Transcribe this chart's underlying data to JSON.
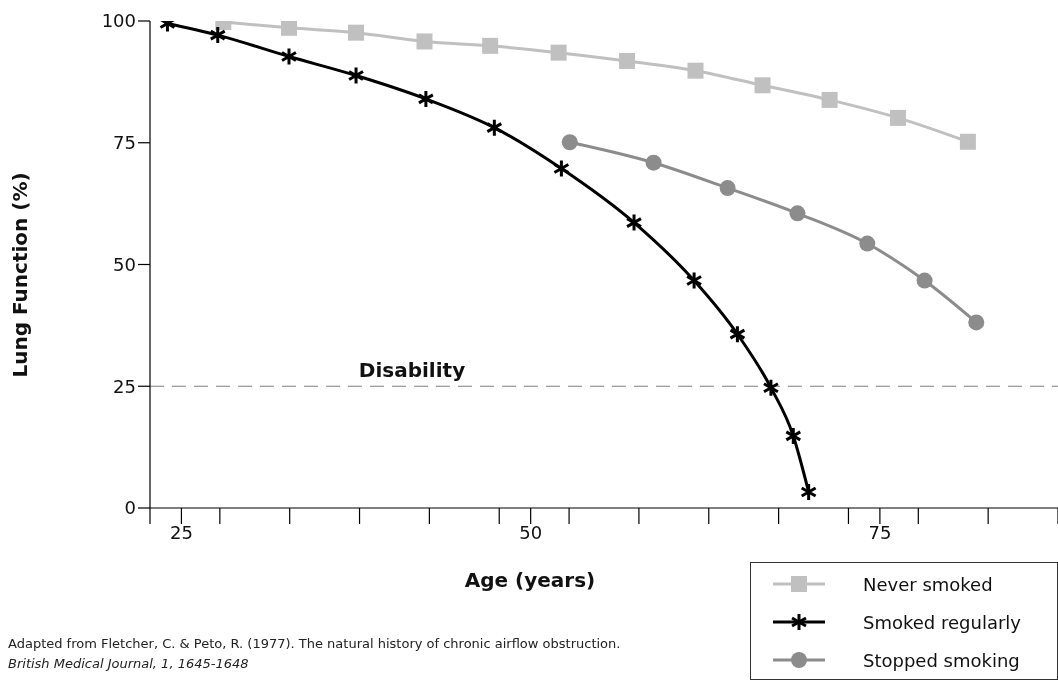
{
  "chart_data": {
    "type": "line",
    "xlabel": "Age (years)",
    "ylabel": "Lung Function (%)",
    "xlim": [
      22.75,
      87.75
    ],
    "ylim": [
      0,
      100
    ],
    "xticks": [
      {
        "value": 22.75,
        "label": null
      },
      25,
      {
        "value": 27.75,
        "label": null
      },
      {
        "value": 32.75,
        "label": null
      },
      {
        "value": 37.75,
        "label": null
      },
      {
        "value": 42.75,
        "label": null
      },
      {
        "value": 47.75,
        "label": null
      },
      50,
      {
        "value": 52.75,
        "label": null
      },
      {
        "value": 57.75,
        "label": null
      },
      {
        "value": 62.75,
        "label": null
      },
      {
        "value": 67.75,
        "label": null
      },
      {
        "value": 72.75,
        "label": null
      },
      75,
      {
        "value": 77.75,
        "label": null
      },
      {
        "value": 82.75,
        "label": null
      },
      {
        "value": 87.75,
        "label": null
      }
    ],
    "yticks": [
      0,
      25,
      50,
      75,
      100
    ],
    "series": [
      {
        "name": "Never smoked",
        "color": "#c0c0c0",
        "marker": "square",
        "x": [
          28,
          32.7,
          37.5,
          42.4,
          47.1,
          52,
          56.9,
          61.8,
          66.6,
          71.4,
          76.3,
          81.3
        ],
        "values": [
          99.8,
          98.6,
          97.6,
          95.8,
          94.9,
          93.5,
          91.8,
          89.8,
          86.8,
          83.8,
          80.1,
          75.2
        ]
      },
      {
        "name": "Smoked regularly",
        "color": "#000000",
        "marker": "cross",
        "x": [
          24,
          27.6,
          32.7,
          37.5,
          42.5,
          47.4,
          52.2,
          57.4,
          61.7,
          64.8,
          67.2,
          68.8,
          69.9
        ],
        "values": [
          99.5,
          97.1,
          92.7,
          88.8,
          84,
          78.1,
          69.7,
          58.6,
          46.7,
          35.7,
          24.7,
          14.8,
          3.3
        ]
      },
      {
        "name": "Stopped smoking",
        "color": "#8c8c8c",
        "marker": "circle",
        "x": [
          52.8,
          58.8,
          64.1,
          69.1,
          74.1,
          78.2,
          81.9
        ],
        "values": [
          75.1,
          70.9,
          65.7,
          60.5,
          54.3,
          46.7,
          38.1
        ]
      }
    ],
    "ref_lines": [
      {
        "axis": "y",
        "value": 25,
        "label": "Disability",
        "color": "#808080",
        "line_style": "dashed"
      }
    ],
    "grid": false,
    "legend": "bottom right",
    "annotations": [
      "Adapted from Fletcher, C. & Peto, R. (1977). The natural history of chronic airflow obstruction.",
      "British Medical Journal, 1, 1645-1648"
    ]
  }
}
